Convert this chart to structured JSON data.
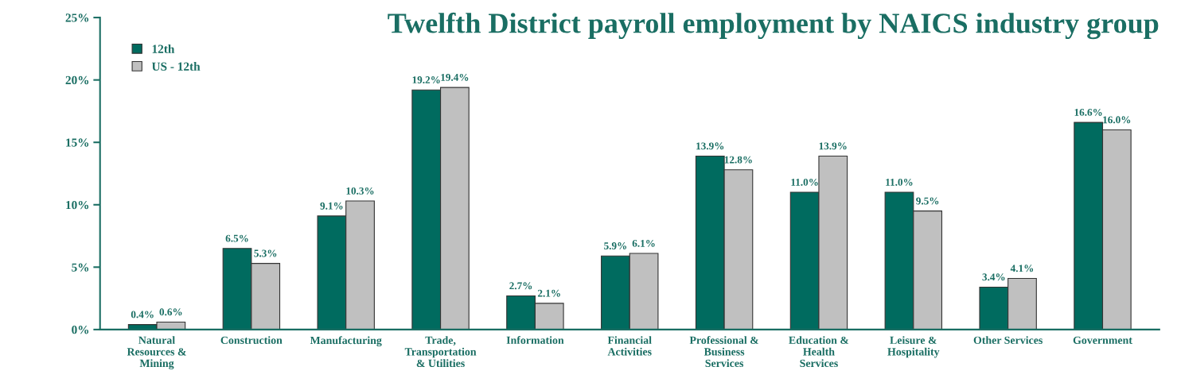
{
  "chart_data": {
    "type": "bar",
    "title": "Twelfth District payroll employment by NAICS industry group",
    "categories": [
      "Natural\nResources &\nMining",
      "Construction",
      "Manufacturing",
      "Trade,\nTransportation\n& Utilities",
      "Information",
      "Financial\nActivities",
      "Professional &\nBusiness\nServices",
      "Education &\nHealth\nServices",
      "Leisure &\nHospitality",
      "Other Services",
      "Government"
    ],
    "series": [
      {
        "name": "12th",
        "color": "#006b5f",
        "values": [
          0.4,
          6.5,
          9.1,
          19.2,
          2.7,
          5.9,
          13.9,
          11.0,
          11.0,
          3.4,
          16.6
        ],
        "value_labels": [
          "0.4%",
          "6.5%",
          "9.1%",
          "19.2%",
          "2.7%",
          "5.9%",
          "13.9%",
          "11.0%",
          "11.0%",
          "3.4%",
          "16.6%"
        ]
      },
      {
        "name": "US - 12th",
        "color": "#c0c0c0",
        "values": [
          0.6,
          5.3,
          10.3,
          19.4,
          2.1,
          6.1,
          12.8,
          13.9,
          9.5,
          4.1,
          16.0
        ],
        "value_labels": [
          "0.6%",
          "5.3%",
          "10.3%",
          "19.4%",
          "2.1%",
          "6.1%",
          "12.8%",
          "13.9%",
          "9.5%",
          "4.1%",
          "16.0%"
        ]
      }
    ],
    "ylim": [
      0,
      25
    ],
    "yticks": [
      {
        "value": 0,
        "label": "0%"
      },
      {
        "value": 5,
        "label": "5%"
      },
      {
        "value": 10,
        "label": "10%"
      },
      {
        "value": 15,
        "label": "15%"
      },
      {
        "value": 20,
        "label": "20%"
      },
      {
        "value": 25,
        "label": "25%"
      }
    ],
    "grid": false,
    "legend": "top left"
  }
}
